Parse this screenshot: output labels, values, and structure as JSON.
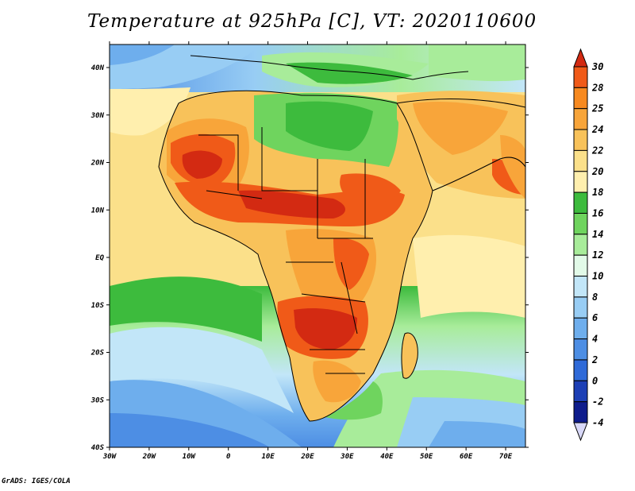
{
  "title": "Temperature at 925hPa [C], VT: 2020110600",
  "credit": "GrADS: IGES/COLA",
  "map": {
    "lon_ticks": [
      "30W",
      "20W",
      "10W",
      "0",
      "10E",
      "20E",
      "30E",
      "40E",
      "50E",
      "60E",
      "70E"
    ],
    "lat_ticks": [
      "40N",
      "30N",
      "20N",
      "10N",
      "EQ",
      "10S",
      "20S",
      "30S",
      "40S"
    ]
  },
  "colorbar": {
    "labels": [
      "30",
      "28",
      "25",
      "24",
      "22",
      "20",
      "18",
      "16",
      "14",
      "12",
      "10",
      "8",
      "6",
      "4",
      "2",
      "0",
      "-2",
      "-4"
    ],
    "colors": [
      "#d32a12",
      "#f05a18",
      "#f7891f",
      "#f8a53a",
      "#f8c25a",
      "#fbe08a",
      "#ffefae",
      "#3dbb3d",
      "#6fd45e",
      "#a8ec9a",
      "#e2fae8",
      "#c2e6f8",
      "#98cdf4",
      "#6eaeed",
      "#4d8ee4",
      "#2f6ad8",
      "#1c3fb5",
      "#0e1c8c",
      "#d8d8f8"
    ]
  }
}
